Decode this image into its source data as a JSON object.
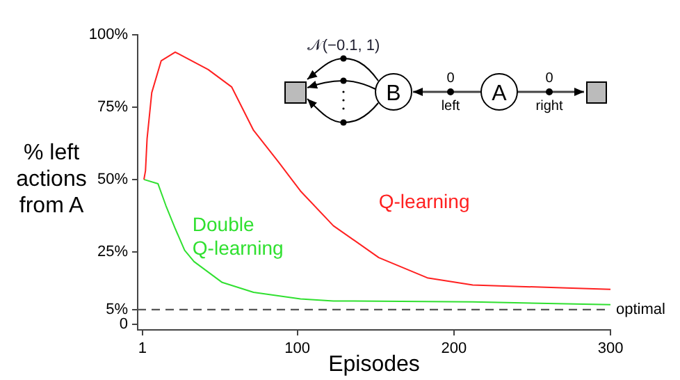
{
  "chart_data": {
    "type": "line",
    "xlabel": "Episodes",
    "ylabel": "% left actions from A",
    "xlim": [
      -2,
      300
    ],
    "ylim": [
      -2,
      100
    ],
    "xticks": [
      1,
      100,
      200,
      300
    ],
    "yticks": [
      {
        "value": 0,
        "label": "0"
      },
      {
        "value": 5,
        "label": "5%"
      },
      {
        "value": 25,
        "label": "25%"
      },
      {
        "value": 50,
        "label": "50%"
      },
      {
        "value": 75,
        "label": "75%"
      },
      {
        "value": 100,
        "label": "100%"
      }
    ],
    "grid": false,
    "legend": false,
    "marker": "none",
    "line_style": "solid",
    "series": [
      {
        "name": "Q-learning",
        "color": "#ff2020",
        "x": [
          2,
          3,
          4,
          7,
          13,
          22,
          43,
          58,
          72,
          88,
          102,
          123,
          152,
          183,
          212,
          242,
          272,
          300
        ],
        "values": [
          50,
          53,
          64,
          80,
          91,
          94,
          88,
          82,
          67,
          56,
          46,
          34,
          23,
          16,
          13.5,
          13,
          12.5,
          12
        ]
      },
      {
        "name": "Double Q-learning",
        "color": "#30e030",
        "x": [
          2,
          11,
          16,
          22,
          28,
          34,
          52,
          72,
          102,
          123,
          212,
          300
        ],
        "values": [
          50,
          48.5,
          41,
          33,
          25.5,
          21.6,
          14.4,
          11,
          8.7,
          8,
          7.7,
          6.7
        ]
      }
    ],
    "ref_lines": [
      {
        "axis": "y",
        "value": 5,
        "label": "optimal",
        "color": "#555555",
        "line_style": "dashed"
      }
    ],
    "annotations": [
      "𝒩(−0.1, 1)",
      "0",
      "left",
      "A",
      "B",
      "0",
      "right"
    ]
  }
}
